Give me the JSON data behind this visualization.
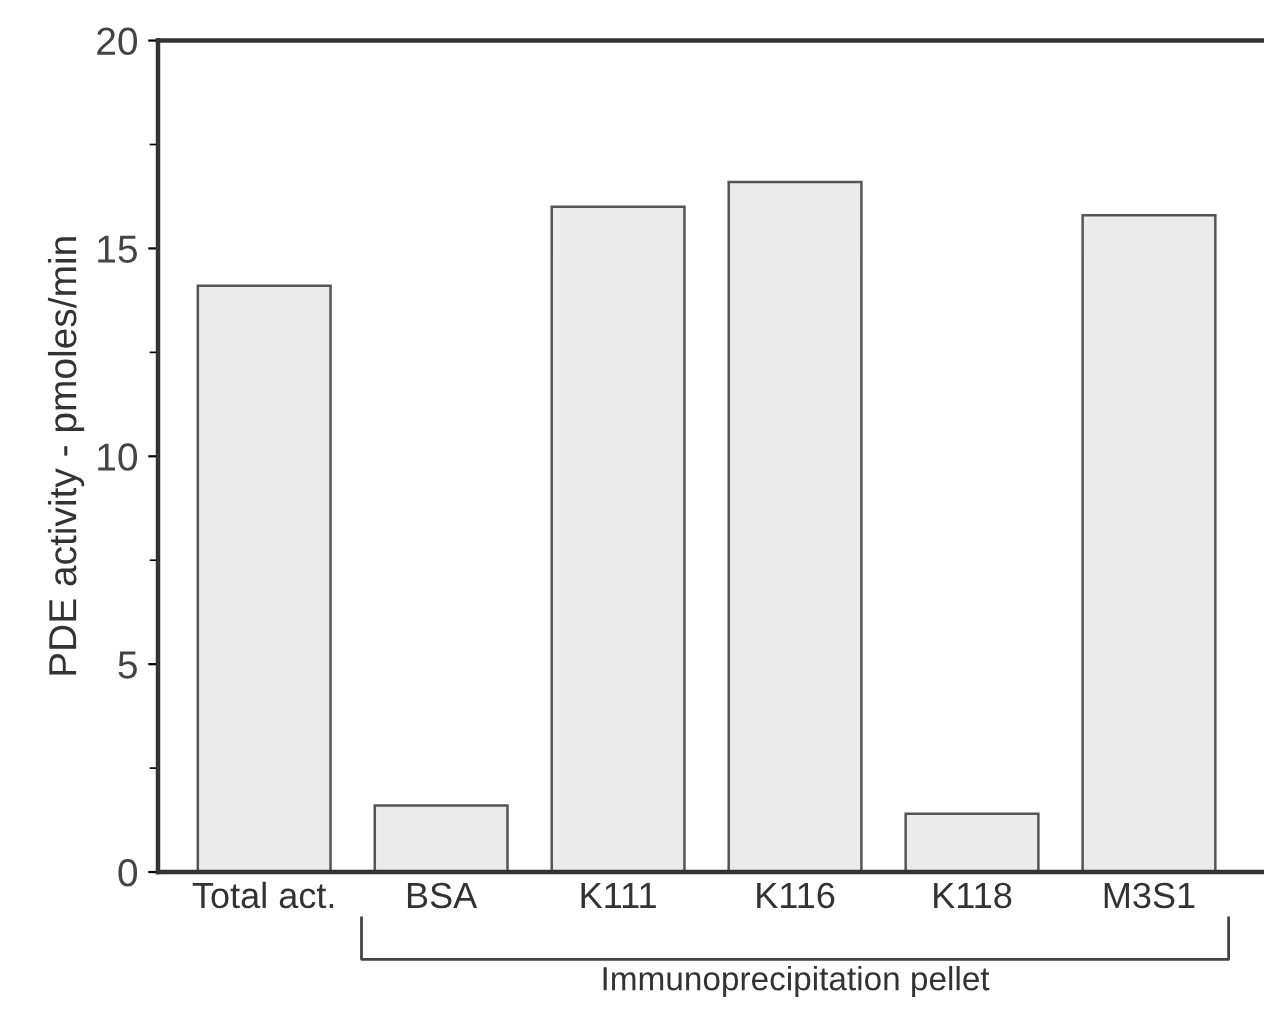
{
  "chart_data": {
    "type": "bar",
    "ylabel": "PDE activity - pmoles/min",
    "categories": [
      "Total act.",
      "BSA",
      "K111",
      "K116",
      "K118",
      "M3S1"
    ],
    "values": [
      14.1,
      1.6,
      16.0,
      16.6,
      1.4,
      15.8
    ],
    "color": "#ebebeb",
    "ylim": [
      0,
      20
    ],
    "yticks": [
      0,
      5,
      10,
      15,
      20
    ],
    "grid": false,
    "annotations": [
      "Immunoprecipitation pellet"
    ]
  }
}
